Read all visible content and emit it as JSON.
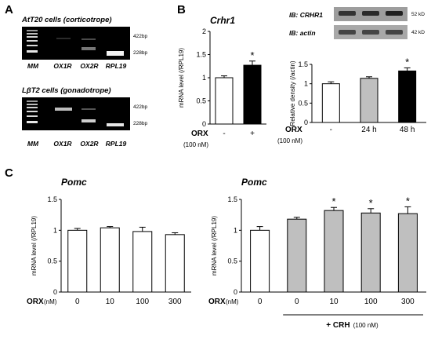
{
  "panel_letters": {
    "a": "A",
    "b": "B",
    "c": "C"
  },
  "gel_top": {
    "caption": "AtT20 cells (corticotrope)",
    "size_labels": [
      "422bp",
      "228bp"
    ],
    "lanes": [
      "MM",
      "OX1R",
      "OX2R",
      "RPL19"
    ]
  },
  "gel_bottom": {
    "caption": "LβT2 cells (gonadotrope)",
    "size_labels": [
      "422bp",
      "228bp"
    ],
    "lanes": [
      "MM",
      "OX1R",
      "OX2R",
      "RPL19"
    ]
  },
  "western": {
    "label_top": "IB: CRHR1",
    "label_bottom": "IB: actin",
    "kd_top": "52 kD",
    "kd_bottom": "42 kD"
  },
  "chart_data": [
    {
      "type": "bar",
      "title": "Crhr1",
      "ylabel": "mRNA level (/RPL19)",
      "ylim": [
        0,
        2
      ],
      "yticks": [
        "0",
        "0.5",
        "1",
        "1.5",
        "2"
      ],
      "xlabel": "ORX",
      "xunit": "(100 nM)",
      "categories": [
        "-",
        "+"
      ],
      "values": [
        1.0,
        1.27
      ],
      "errors": [
        0.04,
        0.09
      ],
      "colors": [
        "#ffffff",
        "#000000"
      ],
      "significance": [
        "",
        "*"
      ]
    },
    {
      "type": "bar",
      "title": "",
      "ylabel": "Relative density (/actin)",
      "ylim": [
        0,
        1.5
      ],
      "yticks": [
        "0",
        "0.5",
        "1",
        "1.5"
      ],
      "xlabel": "ORX",
      "xunit": "(100 nM)",
      "categories": [
        "-",
        "24 h",
        "48 h"
      ],
      "values": [
        1.0,
        1.14,
        1.33
      ],
      "errors": [
        0.05,
        0.04,
        0.08
      ],
      "colors": [
        "#ffffff",
        "#bfbfbf",
        "#000000"
      ],
      "significance": [
        "",
        "",
        "*"
      ]
    },
    {
      "type": "bar",
      "title": "Pomc",
      "ylabel": "mRNA level (/RPL19)",
      "ylim": [
        0,
        1.5
      ],
      "yticks": [
        "0",
        "0.5",
        "1",
        "1.5"
      ],
      "xlabel": "ORX",
      "xunit": "(nM)",
      "categories": [
        "0",
        "10",
        "100",
        "300"
      ],
      "values": [
        1.0,
        1.04,
        0.98,
        0.93
      ],
      "errors": [
        0.03,
        0.02,
        0.07,
        0.03
      ],
      "colors": [
        "#ffffff",
        "#ffffff",
        "#ffffff",
        "#ffffff"
      ],
      "significance": [
        "",
        "",
        "",
        ""
      ]
    },
    {
      "type": "bar",
      "title": "Pomc",
      "ylabel": "mRNA level (/RPL19)",
      "ylim": [
        0,
        1.5
      ],
      "yticks": [
        "0",
        "0.5",
        "1",
        "1.5"
      ],
      "xlabel": "ORX",
      "xunit": "(nM)",
      "categories": [
        "0",
        "0",
        "10",
        "100",
        "300"
      ],
      "values": [
        1.0,
        1.18,
        1.32,
        1.28,
        1.27
      ],
      "errors": [
        0.06,
        0.03,
        0.05,
        0.07,
        0.11
      ],
      "colors": [
        "#ffffff",
        "#bfbfbf",
        "#bfbfbf",
        "#bfbfbf",
        "#bfbfbf"
      ],
      "significance": [
        "",
        "",
        "*",
        "*",
        "*"
      ],
      "bracket_label": "+ CRH",
      "bracket_unit": "(100 nM)"
    }
  ]
}
